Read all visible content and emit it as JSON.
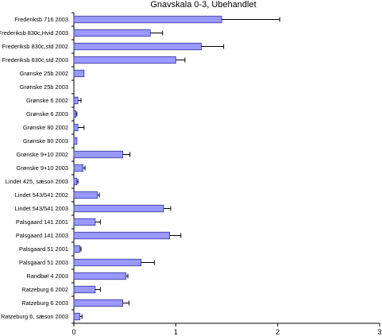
{
  "chart_data": {
    "type": "bar",
    "orientation": "horizontal",
    "title": "Gnavskala 0-3, Ubehandlet",
    "xlabel": "",
    "ylabel": "",
    "xlim": [
      0,
      3
    ],
    "x_ticks": [
      "0",
      "1",
      "2",
      "3"
    ],
    "grid": false,
    "legend": "none",
    "bar_color": "#9999ff",
    "bar_edge_color": "#333399",
    "categories": [
      "Frederiksb 716 2003",
      "Frederiksb 830c,Hvid  2003",
      "Frederiksb 830c,std 2002",
      "Frederiksb 830c,std 2003",
      "Grønske 25b 2002",
      "Grønske 25b 2003",
      "Grønske 6 2002",
      "Grønske 6 2003",
      "Grønske 80 2002",
      "Grønske 80 2003",
      "Grønske 9+10 2002",
      "Grønske 9+10 2003",
      "Lindet 425, sæson 2003",
      "Lindet 543/541 2002",
      "Lindet 543/541 2003",
      "Palsgaard 141 2001",
      "Palsgaard 141 2003",
      "Palsgaard 51 2001",
      "Palsgaard 51 2003",
      "Randbøl 4 2003",
      "Ratzeburg 6 2002",
      "Ratzeburg 6 2003",
      "Ratzeburg 6, sæson 2003"
    ],
    "values": [
      1.45,
      0.75,
      1.25,
      1.0,
      0.1,
      0.0,
      0.04,
      0.02,
      0.04,
      0.03,
      0.48,
      0.09,
      0.03,
      0.23,
      0.88,
      0.21,
      0.94,
      0.06,
      0.66,
      0.51,
      0.21,
      0.48,
      0.06
    ],
    "error": [
      0.57,
      0.12,
      0.22,
      0.09,
      0.0,
      0.0,
      0.03,
      0.01,
      0.06,
      0.0,
      0.07,
      0.02,
      0.01,
      0.02,
      0.07,
      0.05,
      0.11,
      0.01,
      0.13,
      0.02,
      0.05,
      0.06,
      0.02
    ]
  }
}
